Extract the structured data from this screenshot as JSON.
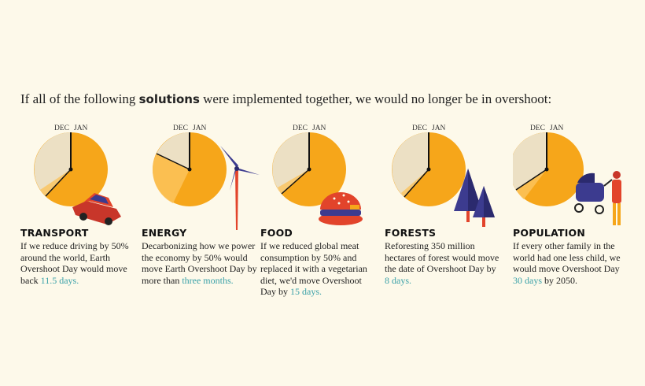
{
  "headline": {
    "prefix": "If all of the following ",
    "bold": "solutions",
    "suffix": " were implemented together, we would no longer be in overshoot:"
  },
  "clock_labels": {
    "dec": "DEC",
    "jan": "JAN"
  },
  "colors": {
    "background": "#fdf9ea",
    "orange": "#f6a61a",
    "cream": "#ece0c4",
    "teal": "#3aa1a8",
    "red": "#e2442b",
    "navy": "#3c3b8f"
  },
  "items": [
    {
      "title": "TRANSPORT",
      "text": "If we reduce driving by 50% around the world, Earth Overshoot Day would move back",
      "highlight": "11.5 days.",
      "after": "",
      "illustration": "car-icon"
    },
    {
      "title": "ENERGY",
      "text": "Decarbonizing how we power the economy by 50% would move Earth Overshoot Day by more than",
      "highlight": "three months.",
      "after": "",
      "illustration": "wind-turbine-icon"
    },
    {
      "title": "FOOD",
      "text": "If we reduced global meat consumption by 50% and replaced it with a vegetarian diet, we'd move Overshoot Day by",
      "highlight": "15 days.",
      "after": "",
      "illustration": "burger-icon"
    },
    {
      "title": "FORESTS",
      "text": "Reforesting 350 million hectares of forest would move the date of Overshoot Day by",
      "highlight": "8 days.",
      "after": "",
      "illustration": "trees-icon"
    },
    {
      "title": "POPULATION",
      "text": "If every other family in the world had one less child, we would move Overshoot Day",
      "highlight": "30 days",
      "after": "by 2050.",
      "illustration": "stroller-icon"
    }
  ]
}
